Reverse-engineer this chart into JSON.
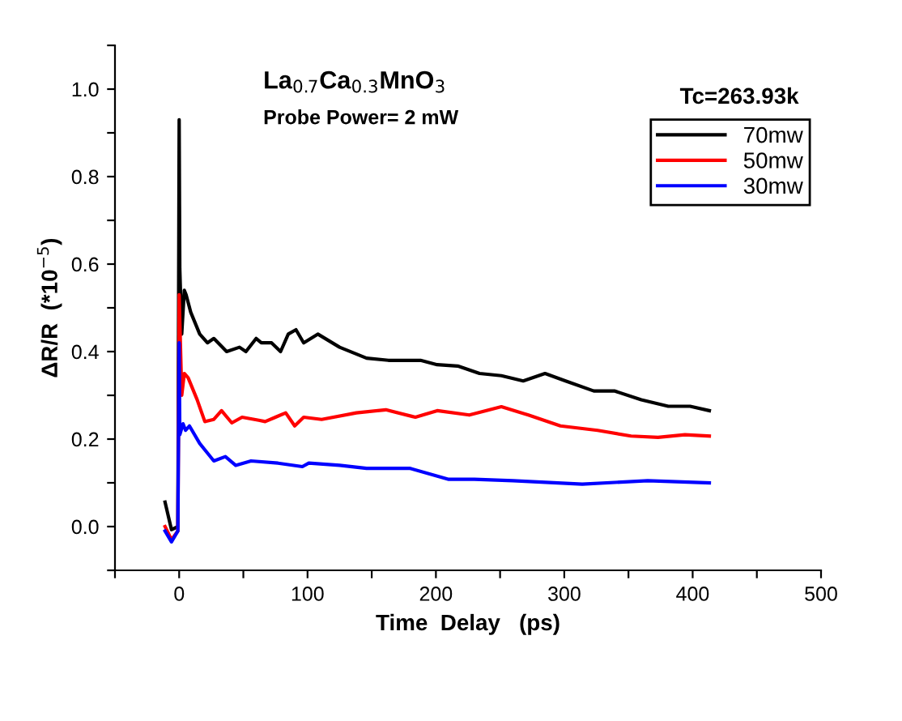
{
  "chart_data": {
    "type": "line",
    "xlabel": "Time  Delay   (ps)",
    "ylabel": "ΔR/R  (*10$^{−5}$)",
    "annotations": [
      "La$_{0.7}$Ca$_{0.3}$MnO$_{3}$",
      "Probe Power= 2 mW",
      "Tc=263.93k"
    ],
    "xlim": [
      -50,
      500
    ],
    "xticks": [
      {
        "value": -50,
        "label": null
      },
      0,
      {
        "value": 50,
        "label": null
      },
      100,
      {
        "value": 150,
        "label": null
      },
      200,
      {
        "value": 250,
        "label": null
      },
      300,
      {
        "value": 350,
        "label": null
      },
      400,
      {
        "value": 450,
        "label": null
      },
      500
    ],
    "ylim": [
      -0.1,
      1.1
    ],
    "yticks": [
      {
        "value": -0.1,
        "label": null
      },
      {
        "value": 0,
        "label": "0.0"
      },
      {
        "value": 0.1,
        "label": null
      },
      0.2,
      {
        "value": 0.3,
        "label": null
      },
      0.4,
      {
        "value": 0.5,
        "label": null
      },
      0.6,
      {
        "value": 0.7,
        "label": null
      },
      0.8,
      {
        "value": 0.9,
        "label": null
      },
      {
        "value": 1.0,
        "label": "1.0"
      },
      {
        "value": 1.1,
        "label": null
      }
    ],
    "grid": false,
    "legend": "top right",
    "marker": "none",
    "line_style": "solid",
    "series": [
      {
        "name": "70mw",
        "color": "#000000",
        "x": [
          -11,
          -6,
          -1,
          0,
          0.5,
          2,
          4,
          5.4,
          9,
          16,
          22,
          27,
          37,
          47,
          52,
          60,
          64,
          72,
          79,
          85,
          91,
          97,
          108,
          125,
          146,
          163,
          188,
          201,
          217,
          234,
          251,
          268,
          285,
          301,
          323,
          339,
          360,
          381,
          398,
          413
        ],
        "values": [
          0.056,
          -0.007,
          0,
          0.93,
          0.59,
          0.44,
          0.54,
          0.53,
          0.49,
          0.44,
          0.42,
          0.43,
          0.4,
          0.41,
          0.4,
          0.43,
          0.42,
          0.42,
          0.4,
          0.44,
          0.45,
          0.42,
          0.44,
          0.41,
          0.385,
          0.38,
          0.38,
          0.37,
          0.367,
          0.35,
          0.345,
          0.333,
          0.35,
          0.333,
          0.31,
          0.31,
          0.29,
          0.275,
          0.275,
          0.265
        ]
      },
      {
        "name": "50mw",
        "color": "#ff0000",
        "x": [
          -11,
          -6,
          -1,
          0,
          2,
          4,
          7,
          14,
          20,
          27,
          33,
          41,
          49,
          62,
          67,
          75,
          83,
          90,
          97,
          111,
          138,
          161,
          184,
          201,
          226,
          251,
          272,
          297,
          326,
          352,
          373,
          394,
          413
        ],
        "values": [
          0,
          -0.03,
          -0.01,
          0.53,
          0.3,
          0.35,
          0.34,
          0.29,
          0.24,
          0.245,
          0.265,
          0.237,
          0.25,
          0.243,
          0.24,
          0.25,
          0.26,
          0.23,
          0.25,
          0.245,
          0.26,
          0.267,
          0.25,
          0.265,
          0.255,
          0.274,
          0.255,
          0.23,
          0.22,
          0.207,
          0.204,
          0.21,
          0.207
        ]
      },
      {
        "name": "30mw",
        "color": "#0000ff",
        "x": [
          -11,
          -6,
          -1,
          0,
          0.5,
          3,
          5,
          8,
          16,
          27,
          36,
          44,
          56,
          77,
          96,
          101,
          125,
          146,
          180,
          210,
          230,
          260,
          314,
          365,
          413
        ],
        "values": [
          -0.01,
          -0.035,
          -0.01,
          0.42,
          0.21,
          0.235,
          0.22,
          0.23,
          0.19,
          0.15,
          0.16,
          0.14,
          0.15,
          0.145,
          0.137,
          0.145,
          0.14,
          0.133,
          0.133,
          0.108,
          0.108,
          0.105,
          0.097,
          0.105,
          0.1
        ]
      }
    ]
  }
}
